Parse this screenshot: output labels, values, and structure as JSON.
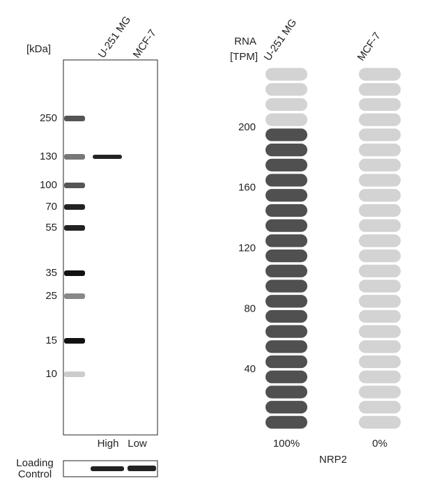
{
  "blot": {
    "unit_label": "[kDa]",
    "lanes": [
      "U-251 MG",
      "MCF-7"
    ],
    "markers": [
      250,
      130,
      100,
      70,
      55,
      35,
      25,
      15,
      10
    ],
    "levels": [
      "High",
      "Low"
    ],
    "loading_control": [
      "Loading",
      "Control"
    ]
  },
  "chart_data": {
    "type": "bar",
    "title": [
      "RNA",
      "[TPM]"
    ],
    "categories": [
      "U-251 MG",
      "MCF-7"
    ],
    "values": [
      200,
      0
    ],
    "share_labels": [
      "100%",
      "0%"
    ],
    "gene": "NRP2",
    "color": "#505050",
    "background_color": "#d3d3d3",
    "ylim": [
      0,
      240
    ],
    "yticks": [
      40,
      80,
      120,
      160,
      200
    ]
  }
}
